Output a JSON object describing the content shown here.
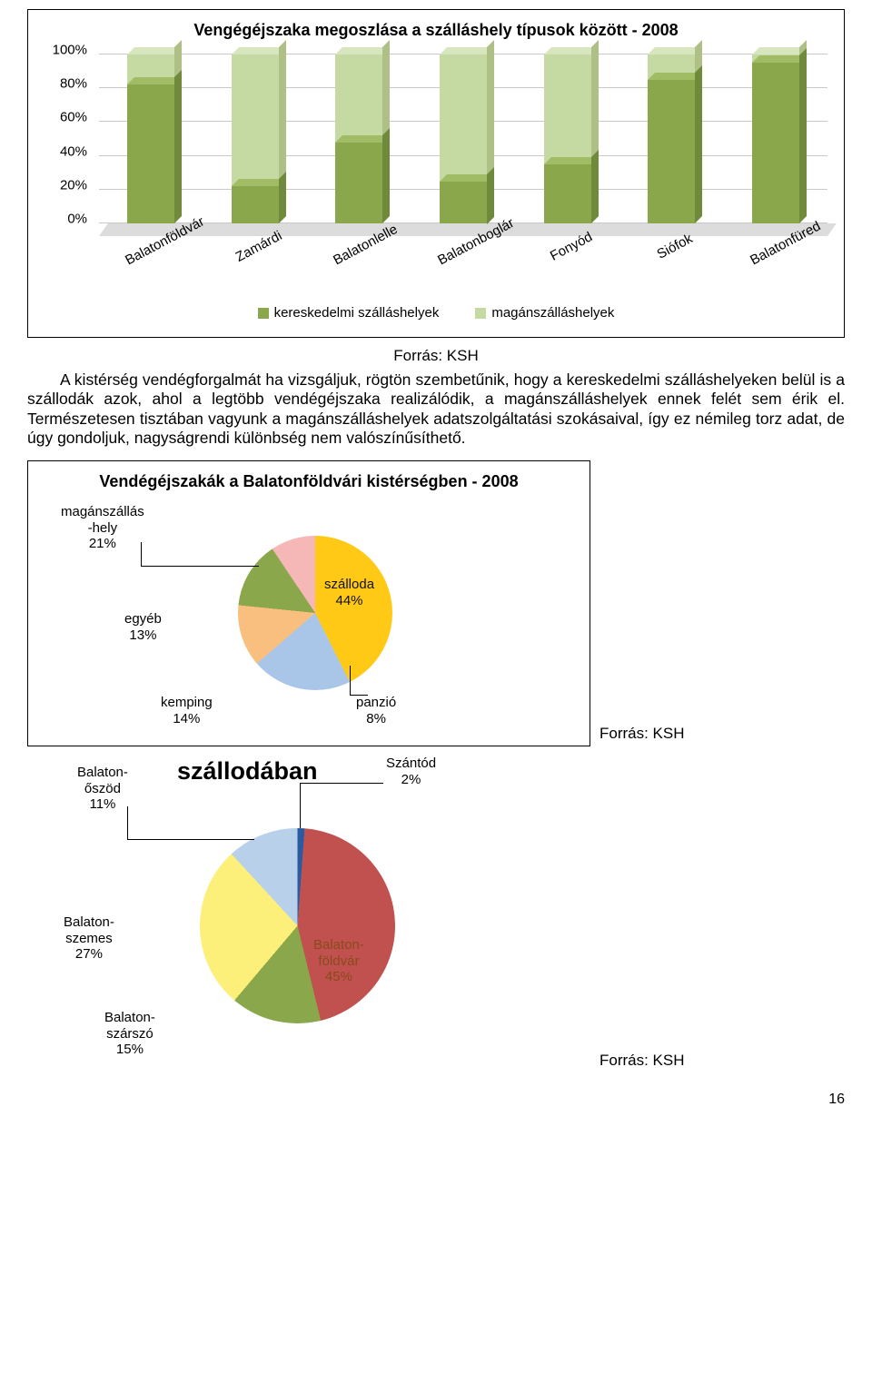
{
  "colors": {
    "series_dark": "#8aa84b",
    "series_dark_top": "#a0bd66",
    "series_dark_side": "#6f8a3b",
    "series_light": "#c5d9a3",
    "series_light_top": "#d7e6bf",
    "series_light_side": "#aec086",
    "grid": "#c8c8c8",
    "floor": "#dcdcdc",
    "pie_blue": "#a9c6e8",
    "pie_orange": "#f8bf7e",
    "pie_yellow": "#ffc915",
    "pie_green": "#8aa84b",
    "pie_pink": "#f6b7b7",
    "pie2_blue": "#b8d0ea",
    "pie2_lemon": "#fdf07a",
    "pie2_red": "#c0514f",
    "pie2_darkblue": "#2a5aa0"
  },
  "bar_chart": {
    "title": "Vengégéjszaka megoszlása a szálláshely típusok között - 2008",
    "y_ticks": [
      "0%",
      "20%",
      "40%",
      "60%",
      "80%",
      "100%"
    ],
    "categories": [
      "Balatonföldvár",
      "Zamárdi",
      "Balatonlelle",
      "Balatonboglár",
      "Fonyód",
      "Siófok",
      "Balatonfüred"
    ],
    "series": [
      {
        "name": "kereskedelmi szálláshelyek",
        "key": "dark"
      },
      {
        "name": "magánszálláshelyek",
        "key": "light"
      }
    ],
    "values": [
      {
        "dark": 82,
        "light": 18
      },
      {
        "dark": 22,
        "light": 78
      },
      {
        "dark": 48,
        "light": 52
      },
      {
        "dark": 25,
        "light": 75
      },
      {
        "dark": 35,
        "light": 65
      },
      {
        "dark": 85,
        "light": 15
      },
      {
        "dark": 95,
        "light": 5
      }
    ]
  },
  "source": "Forrás: KSH",
  "paragraph": "A kistérség vendégforgalmát ha vizsgáljuk, rögtön szembetűnik, hogy a kereskedelmi szálláshelyeken belül is a szállodák azok, ahol a legtöbb vendégéjszaka realizálódik, a magánszálláshelyek ennek felét sem érik el. Természetesen tisztában vagyunk a magánszálláshelyek adatszolgáltatási szokásaival, így ez némileg torz adat, de úgy gondoljuk, nagyságrendi különbség nem valószínűsíthető.",
  "pie1": {
    "title": "Vendégéjszakák a Balatonföldvári kistérségben - 2008",
    "slices": [
      {
        "label": "magánszállás\n-hely\n21%",
        "value": 21
      },
      {
        "label": "egyéb\n13%",
        "value": 13
      },
      {
        "label": "kemping\n14%",
        "value": 14
      },
      {
        "label": "panzió\n8%",
        "value": 8
      },
      {
        "label": "szálloda\n44%",
        "value": 44
      }
    ]
  },
  "pie2": {
    "inline_title": "szállodában",
    "slices": [
      {
        "label": "Balaton-\nőszöd\n11%",
        "value": 11
      },
      {
        "label": "Szántód\n2%",
        "value": 2
      },
      {
        "label": "Balaton-\nszemes\n27%",
        "value": 27
      },
      {
        "label": "Balaton-\nszárszó\n15%",
        "value": 15
      },
      {
        "label": "Balaton-\nföldvár\n45%",
        "value": 45
      }
    ]
  },
  "page_number": "16"
}
